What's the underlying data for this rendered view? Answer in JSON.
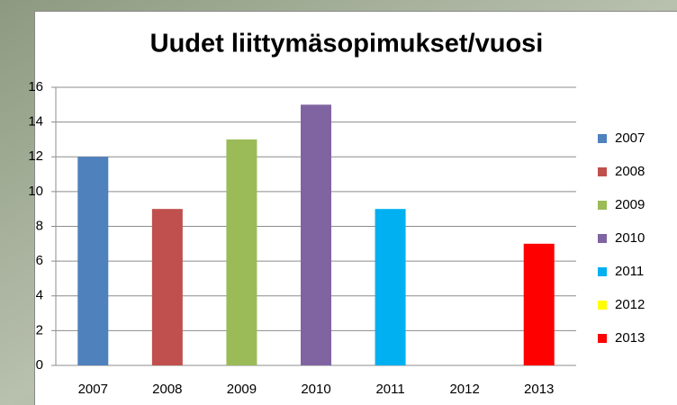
{
  "chart_data": {
    "type": "bar",
    "title": "Uudet liittymäsopimukset/vuosi",
    "categories": [
      "2007",
      "2008",
      "2009",
      "2010",
      "2011",
      "2012",
      "2013"
    ],
    "values": [
      12,
      9,
      13,
      15,
      9,
      0,
      7
    ],
    "colors": [
      "#4f81bd",
      "#c0504d",
      "#9bbb59",
      "#8064a2",
      "#00b0f0",
      "#ffff00",
      "#ff0000"
    ],
    "ylim": [
      0,
      16
    ],
    "yticks": [
      0,
      2,
      4,
      6,
      8,
      10,
      12,
      14,
      16
    ],
    "grid": true,
    "legend": "right"
  }
}
